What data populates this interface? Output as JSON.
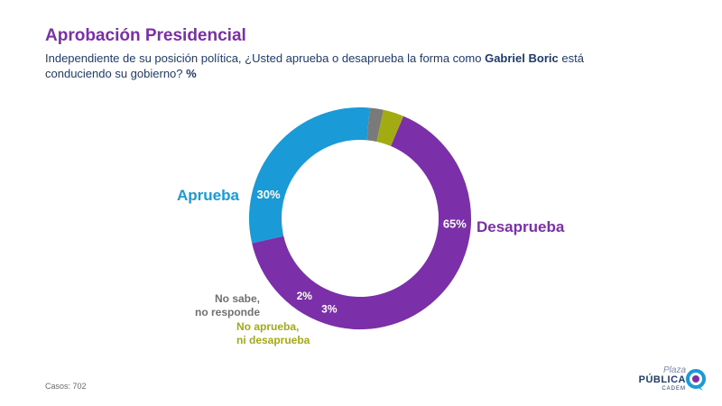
{
  "header": {
    "title": "Aprobación Presidencial",
    "question_part1": "Independiente de su posición política, ¿Usted aprueba o desaprueba la forma como ",
    "question_bold": "Gabriel Boric",
    "question_part2": " está conduciendo su gobierno? ",
    "question_unit": "%"
  },
  "chart_data": {
    "type": "pie",
    "variant": "donut",
    "categories": [
      "Desaprueba",
      "Aprueba",
      "No sabe, no responde",
      "No aprueba, ni desaprueba"
    ],
    "values": [
      65,
      30,
      2,
      3
    ],
    "value_labels": [
      "65%",
      "30%",
      "2%",
      "3%"
    ],
    "colors": [
      "#7b2fa8",
      "#1a9ad6",
      "#7a7a7a",
      "#a3ab12"
    ],
    "category_label_lines": {
      "no_sabe": [
        "No sabe,",
        "no responde"
      ],
      "ni": [
        "No aprueba,",
        "ni desaprueba"
      ]
    }
  },
  "footer": {
    "casos_label": "Casos:",
    "casos_value": "702"
  },
  "logo": {
    "line1": "Plaza",
    "line2": "PÚBLICA",
    "line3": "CADEM"
  }
}
